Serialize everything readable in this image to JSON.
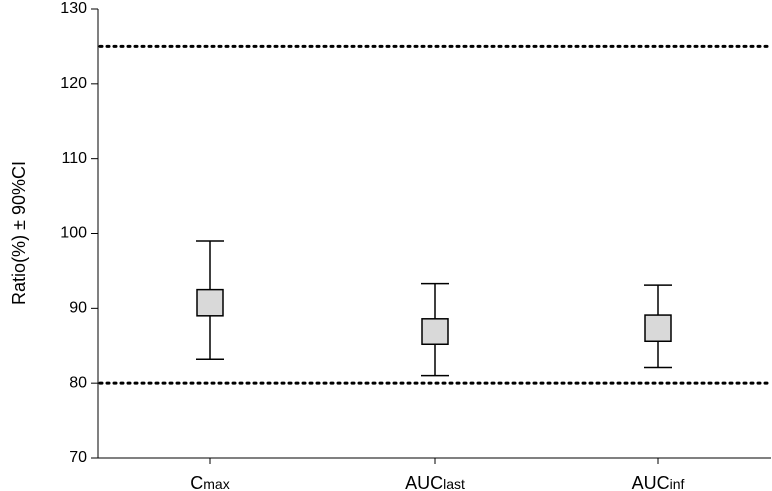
{
  "chart_data": {
    "type": "box",
    "categories": [
      {
        "main": "C",
        "sub": "max"
      },
      {
        "main": "AUC",
        "sub": "last"
      },
      {
        "main": "AUC",
        "sub": "inf"
      }
    ],
    "series": [
      {
        "category_index": 0,
        "ci_low": 83.2,
        "box_low": 89.0,
        "box_high": 92.5,
        "ci_high": 99.0
      },
      {
        "category_index": 1,
        "ci_low": 81.0,
        "box_low": 85.2,
        "box_high": 88.6,
        "ci_high": 93.3
      },
      {
        "category_index": 2,
        "ci_low": 82.1,
        "box_low": 85.6,
        "box_high": 89.1,
        "ci_high": 93.1
      }
    ],
    "reference_lines": [
      80,
      125
    ],
    "ylabel": "Ratio(%) ± 90%CI",
    "ylim": [
      70,
      130
    ],
    "yticks": [
      70,
      80,
      90,
      100,
      110,
      120,
      130
    ],
    "grid": false,
    "colors": {
      "box_fill": "#d9d9d9",
      "stroke": "#000000"
    }
  }
}
